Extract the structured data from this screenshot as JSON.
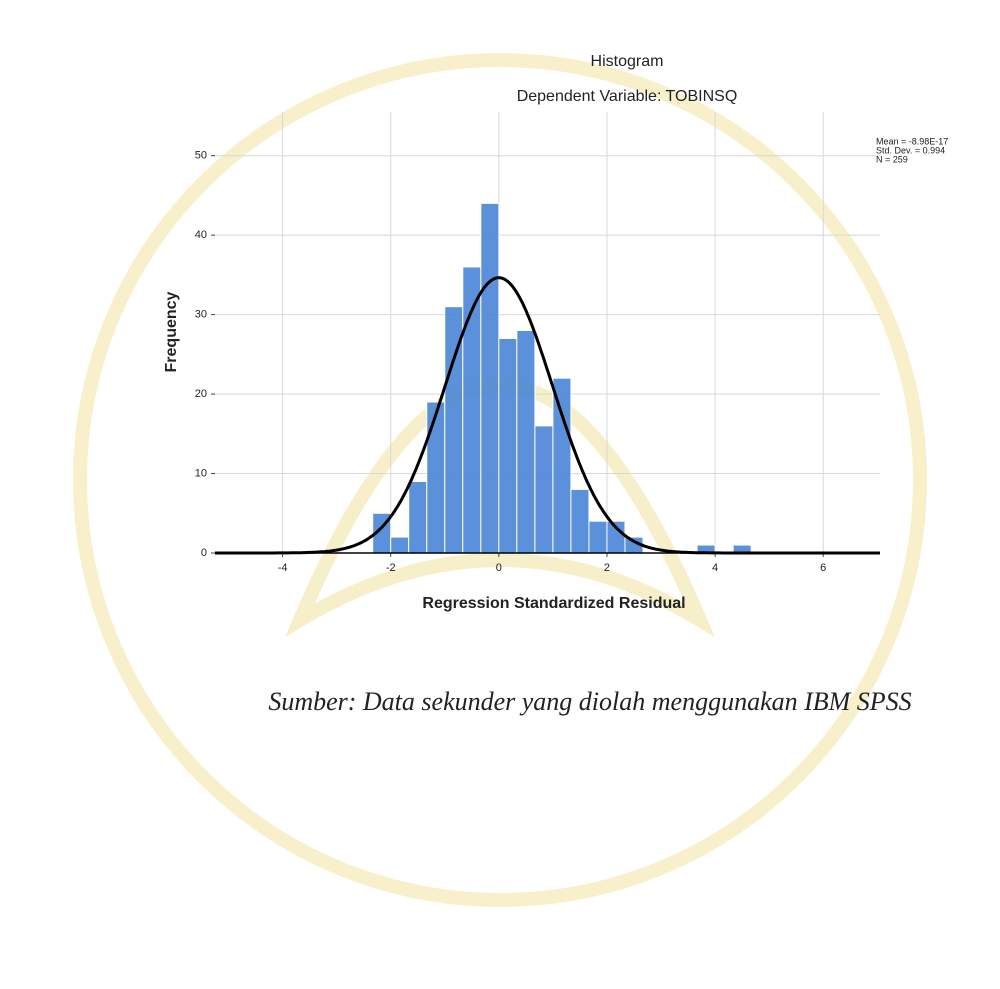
{
  "chart_data": {
    "type": "histogram",
    "title": "Histogram",
    "subtitle": "Dependent Variable: TOBINSQ",
    "x_label": "Regression Standardized Residual",
    "y_label": "Frequency",
    "bins": [
      -2.333,
      -2,
      -1.667,
      -1.333,
      -1,
      -0.667,
      -0.333,
      0,
      0.333,
      0.667,
      1,
      1.333,
      1.667,
      2,
      2.333,
      2.667,
      3,
      3.333,
      3.667,
      4,
      4.333,
      4.667
    ],
    "values": [
      5,
      2,
      9,
      19,
      31,
      36,
      44,
      27,
      28,
      16,
      22,
      8,
      4,
      4,
      2,
      0,
      0,
      0,
      1,
      0,
      1
    ],
    "color": "#4a86d6",
    "curve_color": "#000000",
    "stats": [
      {
        "value": -8.98e-17,
        "label": "Mean = -8.98E-17"
      },
      {
        "value": 0.994,
        "label": "Std. Dev. = 0.994"
      },
      {
        "value": 259,
        "label": "N = 259"
      }
    ],
    "xlim": [
      -5.25,
      7.05
    ],
    "ylim": [
      0,
      55.5
    ],
    "xticks": [
      -4,
      -2,
      0,
      2,
      4,
      6
    ],
    "yticks": [
      0,
      10,
      20,
      30,
      40,
      50
    ],
    "grid": true
  },
  "caption": "Sumber: Data sekunder yang diolah menggunakan IBM SPSS"
}
